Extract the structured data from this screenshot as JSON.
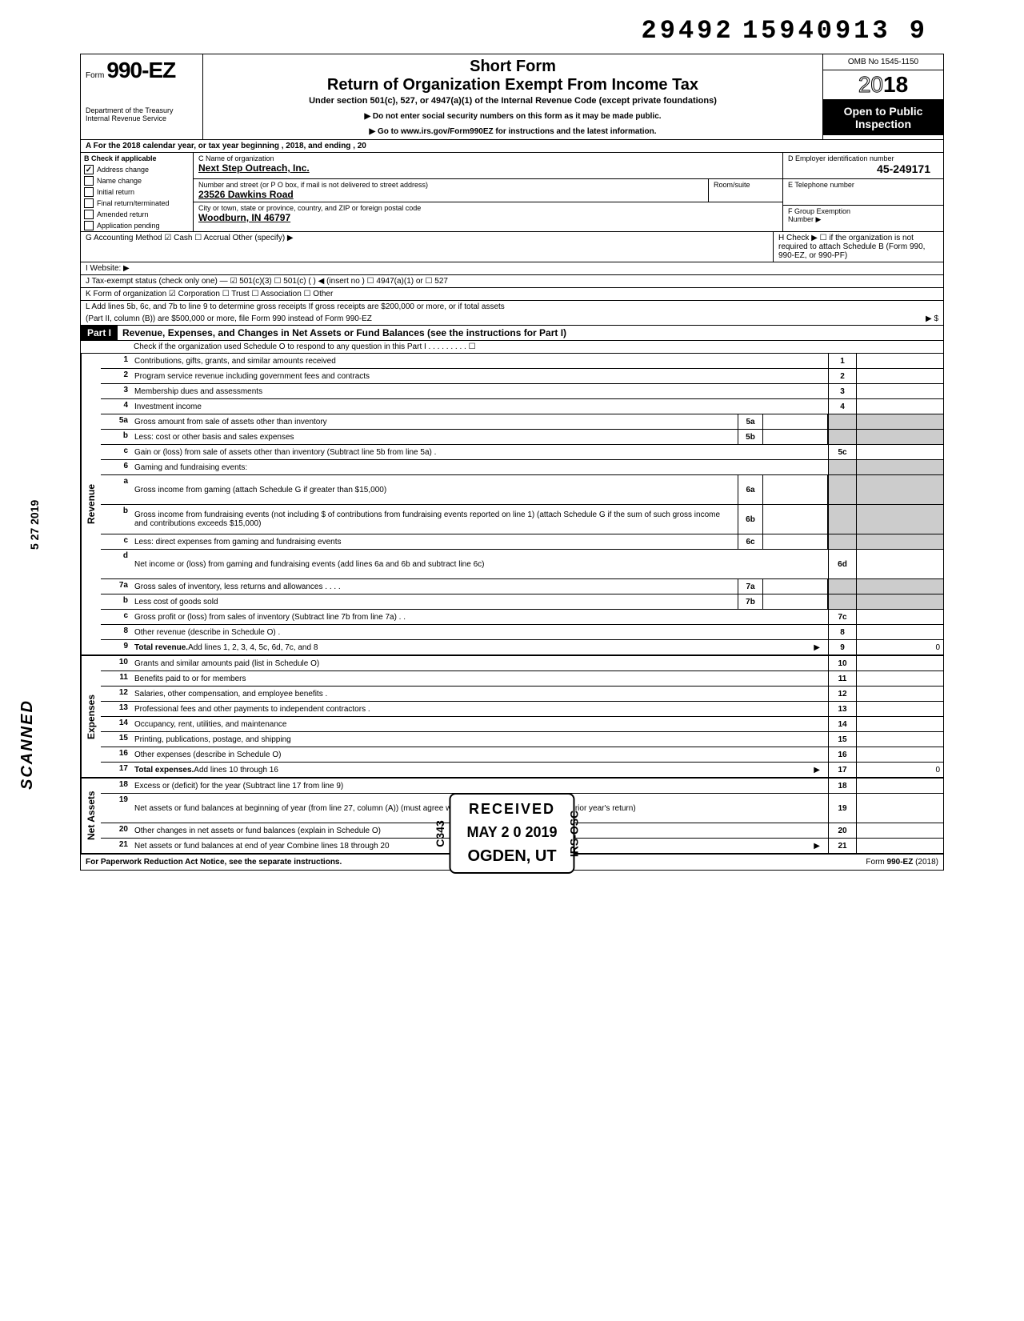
{
  "doc_id": "29492 15940913 9",
  "header": {
    "form_prefix": "Form",
    "form_number": "990-EZ",
    "dept1": "Department of the Treasury",
    "dept2": "Internal Revenue Service",
    "short_form": "Short Form",
    "main_title": "Return of Organization Exempt From Income Tax",
    "subtitle": "Under section 501(c), 527, or 4947(a)(1) of the Internal Revenue Code (except private foundations)",
    "arrow1": "▶ Do not enter social security numbers on this form as it may be made public.",
    "arrow2": "▶ Go to www.irs.gov/Form990EZ for instructions and the latest information.",
    "omb": "OMB No 1545-1150",
    "year_outline": "20",
    "year_bold": "18",
    "open_public1": "Open to Public",
    "open_public2": "Inspection"
  },
  "row_a": "A  For the 2018 calendar year, or tax year beginning                                                          , 2018, and ending                                            , 20",
  "section_b": {
    "head": "B  Check if applicable",
    "items": [
      {
        "label": "Address change",
        "checked": true
      },
      {
        "label": "Name change",
        "checked": false
      },
      {
        "label": "Initial return",
        "checked": false
      },
      {
        "label": "Final return/terminated",
        "checked": false
      },
      {
        "label": "Amended return",
        "checked": false
      },
      {
        "label": "Application pending",
        "checked": false
      }
    ]
  },
  "section_c": {
    "name_label": "C  Name of organization",
    "name_val": "Next Step Outreach, Inc.",
    "addr_label": "Number and street (or P O  box, if mail is not delivered to street address)",
    "room_label": "Room/suite",
    "addr_val": "23526 Dawkins Road",
    "city_label": "City or town, state or province, country, and ZIP or foreign postal code",
    "city_val": "Woodburn, IN  46797"
  },
  "section_d": {
    "ein_label": "D  Employer identification number",
    "ein_val": "45-249171",
    "tel_label": "E  Telephone number",
    "grp_label": "F  Group Exemption",
    "grp_label2": "Number ▶"
  },
  "line_g": "G  Accounting Method      ☑ Cash      ☐ Accrual       Other (specify) ▶",
  "line_h": "H  Check ▶ ☐ if the organization is not required to attach Schedule B (Form 990, 990-EZ, or 990-PF)",
  "line_i": "I   Website: ▶",
  "line_j": "J  Tax-exempt status (check only one) —  ☑ 501(c)(3)   ☐ 501(c) (        ) ◀ (insert no )  ☐ 4947(a)(1) or   ☐ 527",
  "line_k": "K  Form of organization     ☑ Corporation    ☐ Trust     ☐ Association    ☐ Other",
  "line_l1": "L  Add lines 5b, 6c, and 7b to line 9 to determine gross receipts  If gross receipts are $200,000 or more, or if total assets",
  "line_l2": "(Part II, column (B)) are $500,000 or more, file Form 990 instead of Form 990-EZ",
  "line_l_arrow": "▶   $",
  "part1": {
    "label": "Part I",
    "title": "Revenue, Expenses, and Changes in Net Assets or Fund Balances (see the instructions for Part I)",
    "check_line": "Check if the organization used Schedule O to respond to any question in this Part I  .    .    .    .    .    .    .    .    .   ☐"
  },
  "sections": [
    {
      "side": "Revenue",
      "rows": [
        {
          "n": "1",
          "d": "Contributions, gifts, grants, and similar amounts received",
          "box": "1"
        },
        {
          "n": "2",
          "d": "Program service revenue including government fees and contracts",
          "box": "2"
        },
        {
          "n": "3",
          "d": "Membership dues and assessments",
          "box": "3"
        },
        {
          "n": "4",
          "d": "Investment income",
          "box": "4"
        },
        {
          "n": "5a",
          "d": "Gross amount from sale of assets other than inventory",
          "mid": "5a",
          "shaded": true
        },
        {
          "n": "b",
          "d": "Less: cost or other basis and sales expenses",
          "mid": "5b",
          "shaded": true
        },
        {
          "n": "c",
          "d": "Gain or (loss) from sale of assets other than inventory (Subtract line 5b from line 5a)  .",
          "box": "5c"
        },
        {
          "n": "6",
          "d": "Gaming and fundraising events:",
          "shaded_full": true
        },
        {
          "n": "a",
          "d": "Gross income from gaming (attach Schedule G if greater than $15,000)",
          "mid": "6a",
          "shaded": true,
          "tall": true
        },
        {
          "n": "b",
          "d": "Gross income from fundraising events (not including  $                          of contributions from fundraising events reported on line 1) (attach Schedule G if the sum of such gross income and contributions exceeds $15,000)",
          "mid": "6b",
          "shaded": true,
          "tall": true
        },
        {
          "n": "c",
          "d": "Less: direct expenses from gaming and fundraising events",
          "mid": "6c",
          "shaded": true
        },
        {
          "n": "d",
          "d": "Net income or (loss) from gaming and fundraising events (add lines 6a and 6b and subtract line 6c)",
          "box": "6d",
          "tall": true
        },
        {
          "n": "7a",
          "d": "Gross sales of inventory, less returns and allowances .    .    .    .",
          "mid": "7a",
          "shaded": true
        },
        {
          "n": "b",
          "d": "Less  cost of goods sold",
          "mid": "7b",
          "shaded": true
        },
        {
          "n": "c",
          "d": "Gross profit or (loss) from sales of inventory (Subtract line 7b from line 7a)  .   .",
          "box": "7c"
        },
        {
          "n": "8",
          "d": "Other revenue (describe in Schedule O) .",
          "box": "8"
        },
        {
          "n": "9",
          "d": "Total revenue. Add lines 1, 2, 3, 4, 5c, 6d, 7c, and 8",
          "box": "9",
          "val": "0",
          "bold": true,
          "arrow": true
        }
      ]
    },
    {
      "side": "Expenses",
      "rows": [
        {
          "n": "10",
          "d": "Grants and similar amounts paid (list in Schedule O)",
          "box": "10"
        },
        {
          "n": "11",
          "d": "Benefits paid to or for members",
          "box": "11"
        },
        {
          "n": "12",
          "d": "Salaries, other compensation, and employee benefits .",
          "box": "12"
        },
        {
          "n": "13",
          "d": "Professional fees and other payments to independent contractors .",
          "box": "13"
        },
        {
          "n": "14",
          "d": "Occupancy, rent, utilities, and maintenance",
          "box": "14"
        },
        {
          "n": "15",
          "d": "Printing, publications, postage, and shipping",
          "box": "15"
        },
        {
          "n": "16",
          "d": "Other expenses (describe in Schedule O)",
          "box": "16"
        },
        {
          "n": "17",
          "d": "Total expenses. Add lines 10 through 16",
          "box": "17",
          "val": "0",
          "bold": true,
          "arrow": true
        }
      ]
    },
    {
      "side": "Net Assets",
      "rows": [
        {
          "n": "18",
          "d": "Excess or (deficit) for the year (Subtract line 17 from line 9)",
          "box": "18"
        },
        {
          "n": "19",
          "d": "Net assets or fund balances at beginning of year (from line 27, column (A)) (must agree with end-of-year figure reported on prior year's return)",
          "box": "19",
          "tall": true
        },
        {
          "n": "20",
          "d": "Other changes in net assets or fund balances (explain in Schedule O)",
          "box": "20"
        },
        {
          "n": "21",
          "d": "Net assets or fund balances at end of year  Combine lines 18 through 20",
          "box": "21",
          "arrow": true
        }
      ]
    }
  ],
  "footer": {
    "left": "For Paperwork Reduction Act Notice, see the separate instructions.",
    "right": "Form 990-EZ (2018)"
  },
  "stamps": {
    "scanned": "SCANNED",
    "date_side": "5  27  2019",
    "received": "RECEIVED",
    "c343": "C343",
    "irs_osc": "IRS-OSC",
    "recv_date": "MAY  2 0  2019",
    "recv_loc": "OGDEN, UT"
  }
}
